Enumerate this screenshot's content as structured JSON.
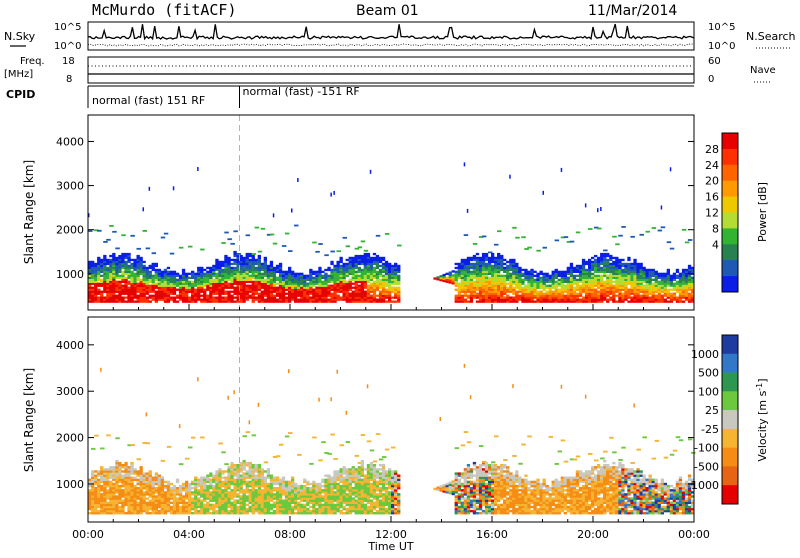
{
  "header": {
    "station": "McMurdo (fitACF)",
    "beam": "Beam 01",
    "date": "11/Mar/2014"
  },
  "side_labels": {
    "nsky": "N.Sky",
    "freq": "Freq.",
    "freq_unit": "[MHz]",
    "cpid": "CPID",
    "nsearch": "N.Search",
    "nave": "Nave"
  },
  "cpid_segments": [
    {
      "label": "normal (fast) 151 RF",
      "start_hour": 0,
      "end_hour": 6
    },
    {
      "label": "normal (fast) -151 RF",
      "start_hour": 6,
      "end_hour": 24
    }
  ],
  "noise_axis": {
    "left_ticks": [
      "10^5",
      "10^0"
    ],
    "right_ticks": [
      "10^5",
      "10^0"
    ]
  },
  "freq_axis": {
    "left_ticks": [
      "18",
      "8"
    ],
    "right_ticks": [
      "60",
      "0"
    ]
  },
  "chart_data": [
    {
      "type": "heatmap",
      "title": "",
      "quantity": "Power",
      "xlabel": "",
      "ylabel": "Slant Range [km]",
      "xlim_hours": [
        0,
        24
      ],
      "ylim": [
        180,
        4600
      ],
      "x_ticks": [
        "00:00",
        "04:00",
        "08:00",
        "12:00",
        "16:00",
        "20:00",
        "00:00"
      ],
      "y_ticks": [
        1000,
        2000,
        3000,
        4000
      ],
      "colorbar": {
        "label": "Power [dB]",
        "tick_labels": [
          "28",
          "24",
          "20",
          "16",
          "12",
          "8",
          "4"
        ],
        "colors": [
          "#e60000",
          "#ff3000",
          "#ff6400",
          "#ff9a00",
          "#f0c800",
          "#b4dc32",
          "#32b432",
          "#288250",
          "#1e5ab4",
          "#0a1ee6"
        ]
      },
      "dataset_divider_hour": 6
    },
    {
      "type": "heatmap",
      "title": "",
      "quantity": "Velocity",
      "xlabel": "Time UT",
      "ylabel": "Slant Range [km]",
      "xlim_hours": [
        0,
        24
      ],
      "ylim": [
        180,
        4600
      ],
      "x_ticks": [
        "00:00",
        "04:00",
        "08:00",
        "12:00",
        "16:00",
        "20:00",
        "00:00"
      ],
      "y_ticks": [
        1000,
        2000,
        3000,
        4000
      ],
      "colorbar": {
        "label": "Velocity [m s^-1]",
        "tick_labels": [
          "1000",
          "500",
          "100",
          "25",
          "-25",
          "-100",
          "-500",
          "-1000"
        ],
        "colors": [
          "#1e3ca0",
          "#3278c8",
          "#2d9650",
          "#6cc83c",
          "#c8c8c0",
          "#f5b432",
          "#f58c14",
          "#e66414",
          "#e60000"
        ]
      },
      "dataset_divider_hour": 6
    }
  ],
  "colors": {
    "ground_scatter": "#a0a0a0",
    "divider": "#b4b4b4"
  }
}
